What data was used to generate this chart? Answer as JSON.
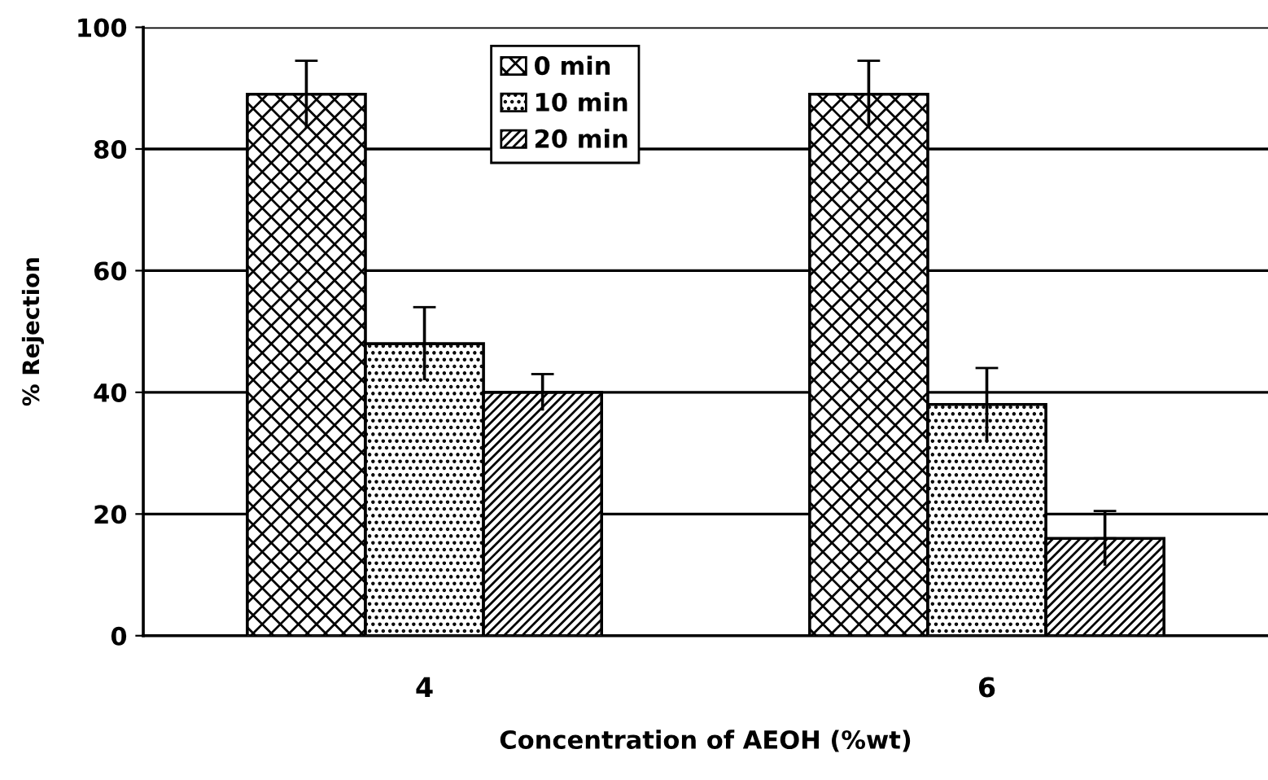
{
  "chart_data": {
    "type": "bar",
    "xlabel": "Concentration of AEOH (%wt)",
    "ylabel": "% Rejection",
    "categories": [
      "4",
      "6"
    ],
    "series": [
      {
        "name": "0 min",
        "color": "#000000",
        "values": [
          89,
          89
        ],
        "errors": [
          5.5,
          5.5
        ]
      },
      {
        "name": "10 min",
        "color": "#000000",
        "values": [
          48,
          38
        ],
        "errors": [
          6,
          6
        ]
      },
      {
        "name": "20 min",
        "color": "#000000",
        "values": [
          40,
          16
        ],
        "errors": [
          3,
          4.5
        ]
      }
    ],
    "ylim": [
      0,
      100
    ],
    "yticks": [
      0,
      20,
      40,
      60,
      80,
      100
    ],
    "grid": "y",
    "legend": "top"
  }
}
